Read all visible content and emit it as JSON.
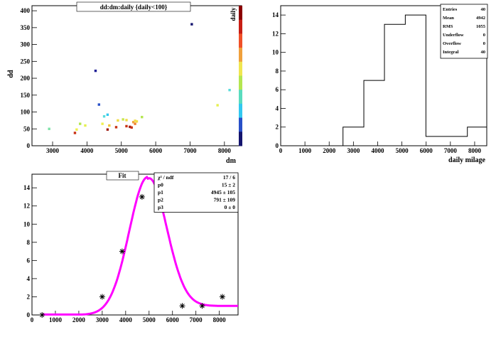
{
  "chart_data": [
    {
      "type": "scatter",
      "title": "dd:dm:daily {daily<100}",
      "xlabel": "dm",
      "ylabel": "dd",
      "zlabel": "daily",
      "xlim": [
        2400,
        8500
      ],
      "ylim": [
        0,
        415
      ],
      "xticks": [
        3000,
        4000,
        5000,
        6000,
        7000,
        8000
      ],
      "yticks": [
        0,
        50,
        100,
        150,
        200,
        250,
        300,
        350,
        400
      ],
      "colorbar": true,
      "points": [
        {
          "x": 2900,
          "y": 50,
          "color": "#7ee3a8"
        },
        {
          "x": 3650,
          "y": 38,
          "color": "#c83214"
        },
        {
          "x": 3700,
          "y": 48,
          "color": "#f0f050"
        },
        {
          "x": 3800,
          "y": 65,
          "color": "#b4e650"
        },
        {
          "x": 3950,
          "y": 60,
          "color": "#e6f050"
        },
        {
          "x": 4250,
          "y": 222,
          "color": "#1e1e96"
        },
        {
          "x": 4350,
          "y": 122,
          "color": "#2850c8"
        },
        {
          "x": 4450,
          "y": 65,
          "color": "#f0f050"
        },
        {
          "x": 4500,
          "y": 87,
          "color": "#5adcdc"
        },
        {
          "x": 4600,
          "y": 92,
          "color": "#32c8f0"
        },
        {
          "x": 4600,
          "y": 48,
          "color": "#a01e14"
        },
        {
          "x": 4650,
          "y": 60,
          "color": "#f0c83c"
        },
        {
          "x": 4850,
          "y": 55,
          "color": "#c83214"
        },
        {
          "x": 4900,
          "y": 75,
          "color": "#f0dc46"
        },
        {
          "x": 5050,
          "y": 78,
          "color": "#c8e650"
        },
        {
          "x": 5150,
          "y": 76,
          "color": "#f0dc46"
        },
        {
          "x": 5150,
          "y": 58,
          "color": "#c83214"
        },
        {
          "x": 5250,
          "y": 56,
          "color": "#a01e14"
        },
        {
          "x": 5300,
          "y": 54,
          "color": "#c83214"
        },
        {
          "x": 5350,
          "y": 70,
          "color": "#f0a03c"
        },
        {
          "x": 5400,
          "y": 65,
          "color": "#f08232"
        },
        {
          "x": 5400,
          "y": 74,
          "color": "#f0dc46"
        },
        {
          "x": 5450,
          "y": 72,
          "color": "#f0dc46"
        },
        {
          "x": 5600,
          "y": 85,
          "color": "#b4e650"
        },
        {
          "x": 7050,
          "y": 360,
          "color": "#14146e"
        },
        {
          "x": 7800,
          "y": 120,
          "color": "#e6f050"
        },
        {
          "x": 8150,
          "y": 165,
          "color": "#5adcdc"
        }
      ]
    },
    {
      "type": "bar",
      "subtype": "histogram",
      "xlabel": "daily milage",
      "ylabel": "",
      "xlim": [
        0,
        8500
      ],
      "ylim": [
        0,
        15
      ],
      "xticks": [
        0,
        1000,
        2000,
        3000,
        4000,
        5000,
        6000,
        7000,
        8000
      ],
      "yticks": [
        0,
        2,
        4,
        6,
        8,
        10,
        12,
        14
      ],
      "bins": [
        {
          "low": 2570,
          "high": 3430,
          "value": 2
        },
        {
          "low": 3430,
          "high": 4280,
          "value": 7
        },
        {
          "low": 4280,
          "high": 5140,
          "value": 13
        },
        {
          "low": 5140,
          "high": 5990,
          "value": 14
        },
        {
          "low": 5990,
          "high": 6850,
          "value": 1
        },
        {
          "low": 6850,
          "high": 7700,
          "value": 1
        },
        {
          "low": 7700,
          "high": 8500,
          "value": 2
        }
      ],
      "stats": [
        {
          "label": "Entries",
          "value": "40"
        },
        {
          "label": "Mean",
          "value": "4942"
        },
        {
          "label": "RMS",
          "value": "1055"
        },
        {
          "label": "Underflow",
          "value": "0"
        },
        {
          "label": "Overflow",
          "value": "0"
        },
        {
          "label": "Integral",
          "value": "40"
        }
      ]
    },
    {
      "type": "line",
      "title": "Fit",
      "xlabel": "",
      "ylabel": "",
      "xlim": [
        0,
        8800
      ],
      "ylim": [
        0,
        15.5
      ],
      "xticks": [
        0,
        1000,
        2000,
        3000,
        4000,
        5000,
        6000,
        7000,
        8000
      ],
      "yticks": [
        0,
        2,
        4,
        6,
        8,
        10,
        12,
        14
      ],
      "markers": [
        {
          "x": 430,
          "y": 0
        },
        {
          "x": 3000,
          "y": 2
        },
        {
          "x": 3850,
          "y": 7
        },
        {
          "x": 4700,
          "y": 13
        },
        {
          "x": 6420,
          "y": 1
        },
        {
          "x": 7270,
          "y": 1
        },
        {
          "x": 8130,
          "y": 2
        }
      ],
      "fit_curve_color": "#ff00ff",
      "fit_params": {
        "p0": 15,
        "p1": 4945,
        "p2": 791,
        "baseline": 1
      },
      "fit_stats": [
        {
          "label": "χ² / ndf",
          "value": "17 / 6"
        },
        {
          "label": "p0",
          "value": "15  ± 2"
        },
        {
          "label": "p1",
          "value": "4945  ± 105"
        },
        {
          "label": "p2",
          "value": "791  ± 109"
        },
        {
          "label": "p3",
          "value": "0  ± 0"
        }
      ]
    }
  ]
}
